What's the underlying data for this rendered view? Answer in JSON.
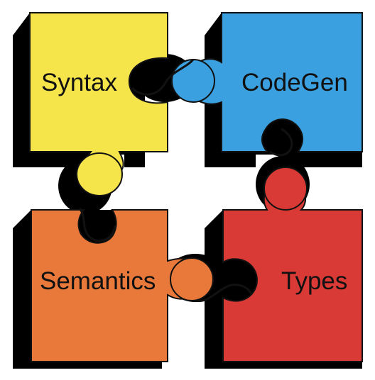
{
  "pieces": [
    {
      "id": "syntax",
      "label": "Syntax",
      "color": "#f5e44a"
    },
    {
      "id": "codegen",
      "label": "CodeGen",
      "color": "#3ba0df"
    },
    {
      "id": "semantics",
      "label": "Semantics",
      "color": "#e8793a"
    },
    {
      "id": "types",
      "label": "Types",
      "color": "#d93a35"
    }
  ],
  "shadow_color": "#000000",
  "outline_color": "#111111"
}
